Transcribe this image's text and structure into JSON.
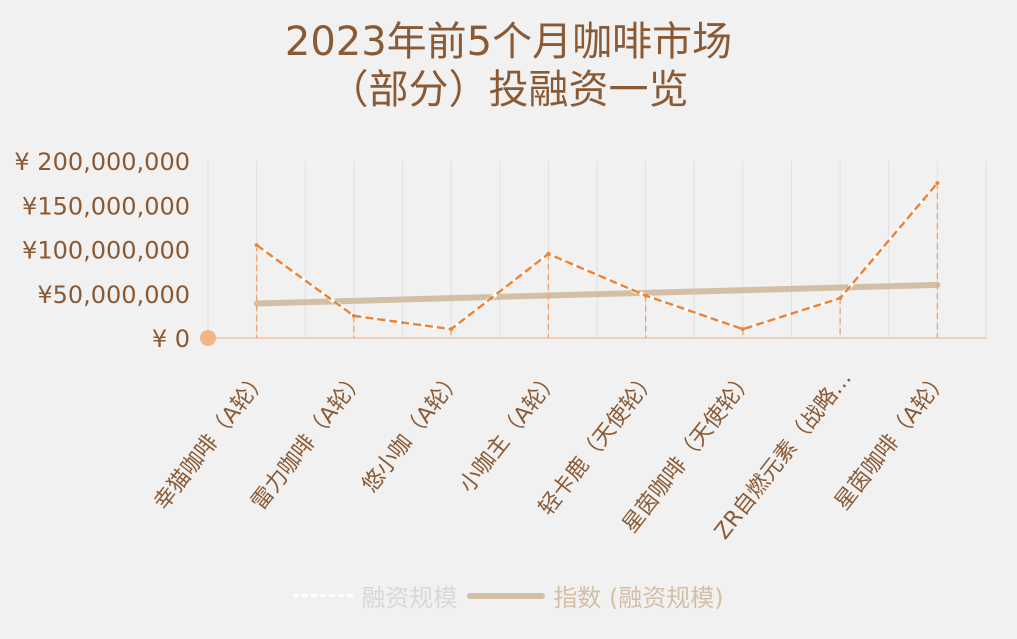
{
  "chart_data": {
    "type": "line",
    "title": [
      "2023年前5个月咖啡市场",
      "（部分）投融资一览"
    ],
    "categories": [
      "幸猫咖啡（A轮）",
      "雷力咖啡（A轮）",
      "悠小咖（A轮）",
      "小咖主（A轮）",
      "轻卡鹿（天使轮）",
      "星茵咖啡（天使轮）",
      "ZR自燃元素（战略…",
      "星茵咖啡（A轮）"
    ],
    "series": [
      {
        "name": "融资规模",
        "values": [
          105000000,
          25000000,
          10000000,
          95000000,
          48000000,
          10000000,
          45000000,
          175000000
        ],
        "color": "#e8853a",
        "style": "dashed"
      },
      {
        "name": "指数 (融资规模)",
        "values": [
          39000000,
          42000000,
          45000000,
          48000000,
          51000000,
          54000000,
          57000000,
          60000000
        ],
        "color": "#d2bfa6",
        "style": "solid"
      }
    ],
    "ylim": [
      0,
      200000000
    ],
    "yticks": [
      "¥ 200,000,000",
      "¥150,000,000",
      "¥100,000,000",
      "¥50,000,000",
      "¥ 0"
    ],
    "ytick_values": [
      200000000,
      150000000,
      100000000,
      50000000,
      0
    ],
    "grid": true,
    "legend": "bottom"
  },
  "colors": {
    "background": "#f1f1f1",
    "text": "#8a5a34",
    "accent": "#e8853a",
    "trend": "#d2bfa6",
    "grid": "#e0e0e0"
  }
}
